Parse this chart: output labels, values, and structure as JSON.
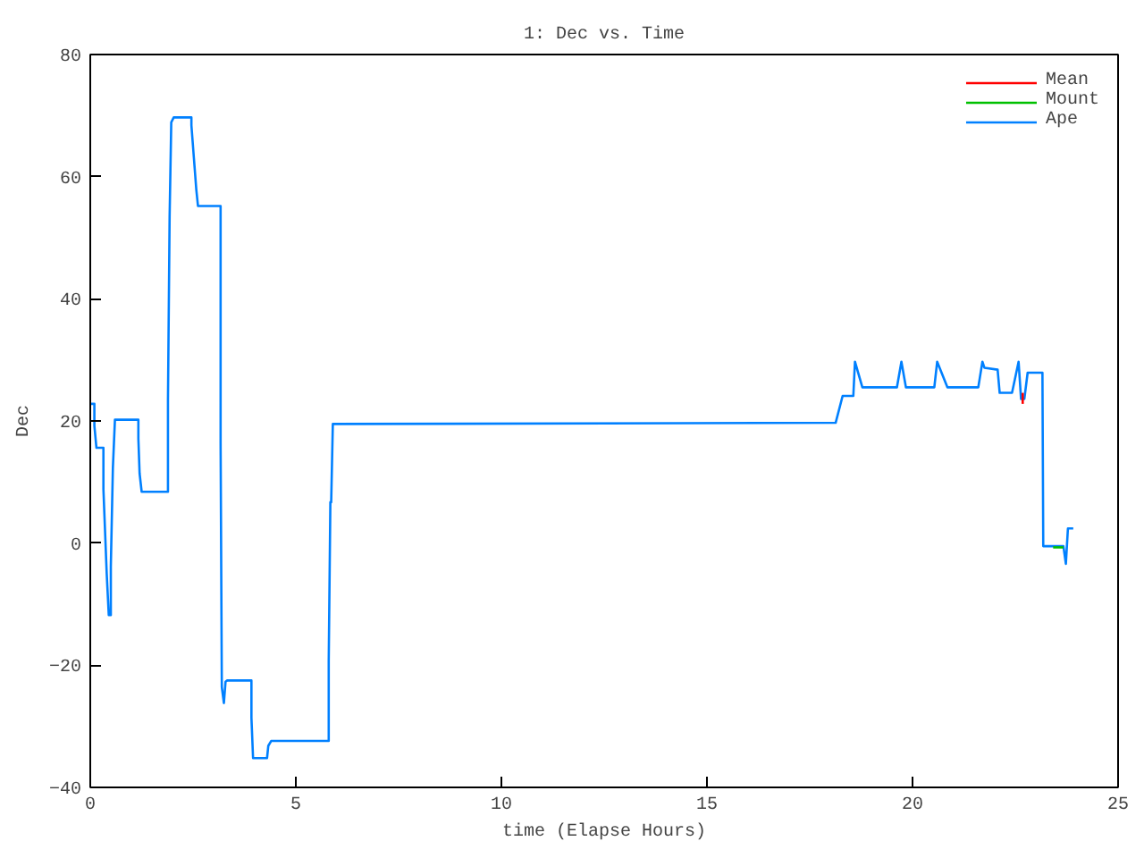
{
  "chart_data": {
    "type": "line",
    "title": "1: Dec vs. Time",
    "xlabel": "time (Elapse Hours)",
    "ylabel": "Dec",
    "xlim": [
      0,
      25
    ],
    "ylim": [
      -40,
      80
    ],
    "xticks": [
      0,
      5,
      10,
      15,
      20,
      25
    ],
    "yticks": [
      -40,
      -20,
      0,
      20,
      40,
      60,
      80
    ],
    "grid": false,
    "legend": "top right",
    "marker": "none",
    "line_style": "solid",
    "series": [
      {
        "name": "Mean",
        "color": "#ff0000",
        "x": [
          22.68,
          22.68
        ],
        "values": [
          24.6,
          22.8
        ]
      },
      {
        "name": "Mount",
        "color": "#00c000",
        "x": [
          23.42,
          23.67
        ],
        "values": [
          -0.7,
          -0.7
        ]
      },
      {
        "name": "Ape",
        "color": "#0080ff",
        "x": [
          0,
          0.1,
          0.1,
          0.15,
          0.32,
          0.32,
          0.4,
          0.45,
          0.5,
          0.5,
          0.55,
          0.6,
          1.17,
          1.17,
          1.2,
          1.25,
          1.89,
          1.89,
          1.93,
          1.97,
          2.03,
          2.46,
          2.46,
          2.52,
          2.58,
          2.62,
          3.17,
          3.17,
          3.2,
          3.25,
          3.29,
          3.33,
          3.92,
          3.92,
          3.96,
          4.3,
          4.33,
          4.4,
          5.8,
          5.8,
          5.84,
          5.86,
          5.9,
          18.13,
          18.3,
          18.56,
          18.6,
          18.78,
          19.62,
          19.73,
          19.84,
          20.53,
          20.6,
          20.85,
          21.6,
          21.7,
          21.75,
          22.07,
          22.12,
          22.42,
          22.58,
          22.64,
          22.72,
          22.8,
          23.16,
          23.18,
          23.67,
          23.73,
          23.78,
          23.91
        ],
        "values": [
          22.8,
          22.8,
          19.2,
          15.6,
          15.6,
          8.8,
          -5,
          -11.8,
          -11.8,
          -3.9,
          12.3,
          20.2,
          20.2,
          17.1,
          11.4,
          8.4,
          8.4,
          23.6,
          53.5,
          68.9,
          69.7,
          69.7,
          68.4,
          63.1,
          57.8,
          55.2,
          55.2,
          16.4,
          -23.6,
          -26.2,
          -22.7,
          -22.5,
          -22.5,
          -28.6,
          -35.2,
          -35.2,
          -33.2,
          -32.4,
          -32.4,
          -19.3,
          6.7,
          6.7,
          19.5,
          19.7,
          24.1,
          24.1,
          29.7,
          25.5,
          25.5,
          29.7,
          25.5,
          25.5,
          29.7,
          25.5,
          25.5,
          29.7,
          28.7,
          28.4,
          24.6,
          24.6,
          29.7,
          23.6,
          23.6,
          27.9,
          27.9,
          -0.5,
          -0.5,
          -3.4,
          2.4,
          2.4
        ]
      }
    ]
  }
}
